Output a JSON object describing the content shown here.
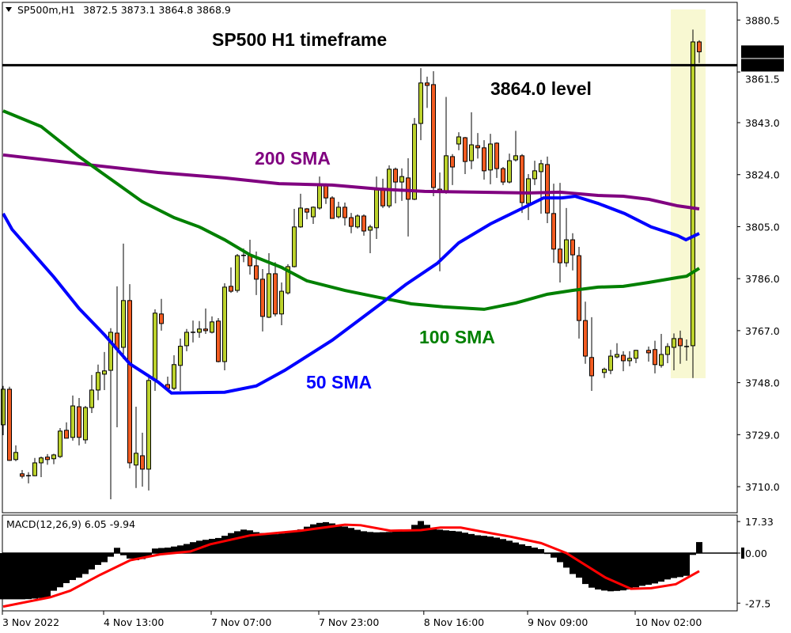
{
  "header": {
    "symbol": "SP500m,H1",
    "ohlc": "3872.5 3873.1 3864.8 3868.9"
  },
  "annotations": {
    "title": "SP500 H1 timeframe",
    "level_label": "3864.0 level",
    "sma200_label": "200 SMA",
    "sma100_label": "100 SMA",
    "sma50_label": "50 SMA"
  },
  "colors": {
    "bull": "#bcd22c",
    "bear": "#f25c22",
    "sma50": "#0000ff",
    "sma100": "#008000",
    "sma200": "#800080",
    "highlight": "#f8f8d2",
    "signal": "#ff0000",
    "histogram": "#000000"
  },
  "chart_data": {
    "type": "candlestick",
    "price_axis": {
      "ticks": [
        "3880.5",
        "3861.5",
        "3843.0",
        "3824.0",
        "3805.0",
        "3786.0",
        "3767.0",
        "3748.0",
        "3729.0",
        "3710.0"
      ],
      "current_price": "3868.9",
      "level": "3864.0"
    },
    "time_axis": [
      {
        "bar": 0,
        "label": "3 Nov 2022"
      },
      {
        "bar": 16,
        "label": "4 Nov 13:00"
      },
      {
        "bar": 33,
        "label": "7 Nov 07:00"
      },
      {
        "bar": 50,
        "label": "7 Nov 23:00"
      },
      {
        "bar": 66.6,
        "label": "8 Nov 16:00"
      },
      {
        "bar": 83,
        "label": "9 Nov 09:00"
      },
      {
        "bar": 100,
        "label": "10 Nov 02:00"
      }
    ],
    "highlight_bars": [
      106,
      110
    ],
    "candles_ohlc": [
      [
        3732.6,
        3746.8,
        3728.8,
        3745.6
      ],
      [
        3745.6,
        3746.5,
        3719.4,
        3719.6
      ],
      [
        3719.9,
        3725.1,
        3719.3,
        3722.5
      ],
      [
        3714.7,
        3716.1,
        3713.0,
        3713.8
      ],
      [
        3714.0,
        3715.3,
        3711.2,
        3714.0
      ],
      [
        3714.0,
        3720.5,
        3713.8,
        3718.7
      ],
      [
        3718.7,
        3721.0,
        3713.5,
        3720.5
      ],
      [
        3720.8,
        3721.9,
        3718.0,
        3719.9
      ],
      [
        3720.2,
        3722.0,
        3718.2,
        3721.6
      ],
      [
        3721.0,
        3731.4,
        3720.5,
        3730.3
      ],
      [
        3730.6,
        3733.5,
        3727.7,
        3727.7
      ],
      [
        3728.0,
        3743.3,
        3726.8,
        3739.5
      ],
      [
        3739.2,
        3742.4,
        3725.1,
        3728.0
      ],
      [
        3727.1,
        3739.5,
        3725.7,
        3738.9
      ],
      [
        3738.9,
        3750.8,
        3736.9,
        3745.3
      ],
      [
        3745.3,
        3754.6,
        3741.6,
        3751.7
      ],
      [
        3751.1,
        3759.2,
        3745.3,
        3752.3
      ],
      [
        3752.5,
        3767.9,
        3705.4,
        3766.4
      ],
      [
        3766.1,
        3783.2,
        3731.7,
        3760.3
      ],
      [
        3760.9,
        3798.8,
        3756.6,
        3778.0
      ],
      [
        3778.0,
        3784.0,
        3716.7,
        3718.7
      ],
      [
        3717.9,
        3739.2,
        3709.5,
        3722.2
      ],
      [
        3721.3,
        3729.7,
        3710.0,
        3716.4
      ],
      [
        3716.4,
        3751.1,
        3708.6,
        3748.8
      ],
      [
        3748.8,
        3774.8,
        3745.0,
        3773.4
      ],
      [
        3773.1,
        3778.6,
        3767.0,
        3769.6
      ],
      [
        3747.3,
        3750.2,
        3745.6,
        3745.9
      ],
      [
        3745.9,
        3758.0,
        3745.3,
        3754.6
      ],
      [
        3754.3,
        3764.1,
        3745.0,
        3761.3
      ],
      [
        3761.5,
        3767.6,
        3759.5,
        3766.4
      ],
      [
        3766.4,
        3770.7,
        3762.7,
        3766.4
      ],
      [
        3766.4,
        3770.5,
        3764.4,
        3767.6
      ],
      [
        3767.6,
        3775.1,
        3765.8,
        3767.0
      ],
      [
        3766.4,
        3772.2,
        3766.0,
        3770.2
      ],
      [
        3770.5,
        3771.6,
        3755.4,
        3755.7
      ],
      [
        3755.7,
        3784.3,
        3752.5,
        3782.9
      ],
      [
        3783.2,
        3790.1,
        3780.8,
        3781.4
      ],
      [
        3781.7,
        3795.0,
        3780.9,
        3794.4
      ],
      [
        3794.4,
        3797.0,
        3792.0,
        3794.5
      ],
      [
        3794.7,
        3800.2,
        3787.5,
        3790.7
      ],
      [
        3790.7,
        3795.9,
        3780.0,
        3785.8
      ],
      [
        3785.8,
        3789.5,
        3766.7,
        3772.2
      ],
      [
        3771.9,
        3795.3,
        3771.6,
        3787.8
      ],
      [
        3787.8,
        3792.0,
        3772.2,
        3773.1
      ],
      [
        3773.1,
        3784.6,
        3769.0,
        3781.4
      ],
      [
        3780.8,
        3791.3,
        3780.2,
        3790.4
      ],
      [
        3790.4,
        3811.5,
        3790.1,
        3804.9
      ],
      [
        3804.9,
        3817.0,
        3804.6,
        3811.8
      ],
      [
        3811.5,
        3811.8,
        3807.7,
        3810.3
      ],
      [
        3808.6,
        3812.4,
        3806.0,
        3812.1
      ],
      [
        3811.8,
        3823.3,
        3811.2,
        3820.5
      ],
      [
        3820.5,
        3820.8,
        3813.3,
        3815.5
      ],
      [
        3815.5,
        3816.1,
        3808.0,
        3808.0
      ],
      [
        3808.6,
        3814.1,
        3808.0,
        3812.1
      ],
      [
        3812.1,
        3813.8,
        3805.4,
        3808.3
      ],
      [
        3808.3,
        3810.0,
        3802.6,
        3805.1
      ],
      [
        3804.9,
        3809.5,
        3804.3,
        3808.9
      ],
      [
        3808.9,
        3809.5,
        3801.7,
        3803.4
      ],
      [
        3803.7,
        3805.7,
        3795.3,
        3804.9
      ],
      [
        3804.6,
        3823.3,
        3800.5,
        3818.4
      ],
      [
        3818.7,
        3822.5,
        3811.8,
        3812.6
      ],
      [
        3812.6,
        3827.4,
        3811.8,
        3826.0
      ],
      [
        3826.0,
        3826.6,
        3813.5,
        3821.3
      ],
      [
        3821.3,
        3826.3,
        3814.4,
        3823.3
      ],
      [
        3822.8,
        3830.0,
        3801.4,
        3815.0
      ],
      [
        3815.0,
        3844.7,
        3814.7,
        3842.4
      ],
      [
        3842.7,
        3862.9,
        3836.6,
        3857.5
      ],
      [
        3857.5,
        3859.8,
        3848.4,
        3856.6
      ],
      [
        3856.9,
        3861.8,
        3816.1,
        3819.3
      ],
      [
        3818.7,
        3824.8,
        3788.7,
        3817.8
      ],
      [
        3817.8,
        3852.4,
        3817.0,
        3830.9
      ],
      [
        3830.6,
        3831.5,
        3820.2,
        3826.8
      ],
      [
        3835.2,
        3839.5,
        3832.9,
        3837.8
      ],
      [
        3837.5,
        3837.8,
        3824.2,
        3828.8
      ],
      [
        3829.1,
        3846.8,
        3826.0,
        3834.9
      ],
      [
        3834.6,
        3839.2,
        3829.9,
        3833.8
      ],
      [
        3833.8,
        3836.6,
        3822.2,
        3825.4
      ],
      [
        3825.7,
        3838.9,
        3820.5,
        3835.2
      ],
      [
        3835.5,
        3835.8,
        3822.8,
        3826.2
      ],
      [
        3826.2,
        3826.8,
        3820.2,
        3821.3
      ],
      [
        3821.3,
        3831.7,
        3820.8,
        3829.1
      ],
      [
        3829.4,
        3840.0,
        3828.8,
        3830.9
      ],
      [
        3830.9,
        3831.5,
        3810.0,
        3813.8
      ],
      [
        3813.5,
        3824.2,
        3807.4,
        3822.5
      ],
      [
        3822.5,
        3829.1,
        3820.2,
        3825.4
      ],
      [
        3825.1,
        3829.4,
        3809.7,
        3828.0
      ],
      [
        3827.7,
        3830.6,
        3806.3,
        3810.0
      ],
      [
        3809.8,
        3820.7,
        3791.8,
        3796.8
      ],
      [
        3796.8,
        3821.0,
        3784.6,
        3791.8
      ],
      [
        3791.8,
        3811.8,
        3790.3,
        3800.2
      ],
      [
        3800.2,
        3802.6,
        3789.0,
        3794.7
      ],
      [
        3794.4,
        3797.6,
        3764.1,
        3770.7
      ],
      [
        3770.7,
        3777.6,
        3754.9,
        3757.7
      ],
      [
        3757.2,
        3771.9,
        3745.0,
        3750.5
      ],
      null,
      [
        3751.7,
        3753.5,
        3749.7,
        3752.9
      ],
      [
        3752.5,
        3760.0,
        3751.1,
        3757.7
      ],
      [
        3757.4,
        3762.4,
        3756.9,
        3758.3
      ],
      [
        3758.0,
        3759.5,
        3752.2,
        3756.0
      ],
      [
        3756.0,
        3759.5,
        3754.0,
        3756.9
      ],
      [
        3756.9,
        3760.0,
        3755.1,
        3759.8
      ],
      null,
      [
        3759.8,
        3761.2,
        3755.7,
        3758.9
      ],
      [
        3760.1,
        3763.3,
        3751.4,
        3754.6
      ],
      [
        3754.3,
        3765.8,
        3753.5,
        3758.3
      ],
      [
        3758.3,
        3762.4,
        3755.1,
        3761.2
      ],
      [
        3760.9,
        3766.0,
        3752.5,
        3764.1
      ],
      [
        3764.1,
        3767.0,
        3754.9,
        3761.5
      ],
      [
        3761.2,
        3763.8,
        3756.0,
        3761.2
      ],
      [
        3761.5,
        3877.0,
        3749.7,
        3872.5
      ],
      [
        3872.5,
        3873.1,
        3864.8,
        3868.9
      ]
    ],
    "sma50": [
      [
        0,
        3809.8
      ],
      [
        1.4,
        3804
      ],
      [
        3.6,
        3798.2
      ],
      [
        8,
        3786.6
      ],
      [
        12,
        3775.1
      ],
      [
        16,
        3765.5
      ],
      [
        20,
        3754.9
      ],
      [
        24.5,
        3748.2
      ],
      [
        26.6,
        3744.2
      ],
      [
        35,
        3744.5
      ],
      [
        40,
        3746.8
      ],
      [
        44.5,
        3752.5
      ],
      [
        52,
        3763.5
      ],
      [
        59.5,
        3776.5
      ],
      [
        63.6,
        3783.8
      ],
      [
        68.6,
        3791.6
      ],
      [
        72,
        3799.1
      ],
      [
        77,
        3806
      ],
      [
        81.6,
        3811.2
      ],
      [
        85.4,
        3815.5
      ],
      [
        88.3,
        3815.5
      ],
      [
        90.4,
        3816.1
      ],
      [
        94,
        3813.5
      ],
      [
        98.2,
        3809.8
      ],
      [
        102.4,
        3804.9
      ],
      [
        106.6,
        3801.7
      ],
      [
        107.9,
        3800.2
      ],
      [
        110,
        3802.5
      ]
    ],
    "sma100": [
      [
        0,
        3847.3
      ],
      [
        6,
        3841.6
      ],
      [
        12,
        3830.6
      ],
      [
        18,
        3820.7
      ],
      [
        22,
        3814.1
      ],
      [
        27,
        3808.3
      ],
      [
        31,
        3804.9
      ],
      [
        35,
        3800.2
      ],
      [
        39,
        3794.7
      ],
      [
        44,
        3790.1
      ],
      [
        48,
        3785.2
      ],
      [
        54,
        3781.7
      ],
      [
        59.5,
        3779.1
      ],
      [
        64.5,
        3776.8
      ],
      [
        69.5,
        3775.7
      ],
      [
        76,
        3774.8
      ],
      [
        81,
        3777.1
      ],
      [
        86,
        3780.3
      ],
      [
        90,
        3781.7
      ],
      [
        94,
        3782.9
      ],
      [
        98,
        3783.2
      ],
      [
        102,
        3784.6
      ],
      [
        106.6,
        3786.4
      ],
      [
        108,
        3786.9
      ],
      [
        110,
        3789.8
      ]
    ],
    "sma200": [
      [
        0,
        3831.2
      ],
      [
        12,
        3828
      ],
      [
        24.5,
        3824.8
      ],
      [
        35,
        3822.8
      ],
      [
        43.6,
        3820.7
      ],
      [
        52,
        3820.2
      ],
      [
        59.5,
        3818.7
      ],
      [
        66.6,
        3817.9
      ],
      [
        75,
        3817.6
      ],
      [
        83,
        3817.3
      ],
      [
        88,
        3817.6
      ],
      [
        94,
        3816.4
      ],
      [
        98,
        3816.1
      ],
      [
        102,
        3815
      ],
      [
        106.6,
        3812.6
      ],
      [
        110,
        3811.5
      ]
    ]
  },
  "macd": {
    "label": "MACD(12,26,9) 6.05 -9.94",
    "ticks": [
      "17.33",
      "0.00",
      "-27.5"
    ],
    "histogram": [
      -25.4,
      -25.4,
      -25.4,
      -25.4,
      -25.3,
      -25,
      -24.7,
      -24.3,
      -20.7,
      -18.8,
      -16.5,
      -14.8,
      -13.5,
      -11.5,
      -9,
      -6.5,
      -5,
      -2,
      2.9,
      -1.2,
      -3,
      -3.9,
      -3.3,
      -2,
      2.5,
      2.8,
      3,
      3.6,
      4.2,
      5,
      6,
      6.8,
      7.3,
      7.8,
      8.3,
      9.5,
      11,
      12,
      12.9,
      12.5,
      11.5,
      11,
      10.7,
      10.4,
      10.8,
      11.4,
      11.9,
      13,
      14.5,
      15.8,
      16.6,
      17,
      16.3,
      15.5,
      14.6,
      13.8,
      12.8,
      12,
      11.6,
      11.4,
      11.5,
      11.6,
      11.8,
      12.2,
      13,
      15.5,
      17.6,
      15.5,
      13.9,
      12.9,
      12.5,
      12.2,
      11.9,
      11.2,
      10.5,
      9.8,
      9.5,
      9.1,
      8.5,
      7.7,
      6.8,
      5.8,
      4.8,
      3.9,
      3,
      2.2,
      -0.5,
      -2.5,
      -5,
      -8,
      -11.5,
      -13.5,
      -17,
      -19,
      -20,
      -20.6,
      -21,
      -20.8,
      -20.5,
      -20,
      -18.8,
      -18,
      -17.4,
      -16.7,
      -15.7,
      -14.5,
      -13.7,
      -13.2,
      -12.5,
      -1,
      6.05
    ],
    "signal": [
      [
        0,
        -29.4
      ],
      [
        7.4,
        -24.3
      ],
      [
        10.6,
        -20.7
      ],
      [
        15.3,
        -12
      ],
      [
        20.1,
        -3.9
      ],
      [
        24.8,
        -0.7
      ],
      [
        29.6,
        0.9
      ],
      [
        32.7,
        4.8
      ],
      [
        39,
        9.7
      ],
      [
        47,
        12.3
      ],
      [
        54,
        15.6
      ],
      [
        56.5,
        15.3
      ],
      [
        61.2,
        12.3
      ],
      [
        66,
        12.6
      ],
      [
        69.1,
        14
      ],
      [
        72.3,
        14
      ],
      [
        75.5,
        11.9
      ],
      [
        80.2,
        9
      ],
      [
        85,
        5.5
      ],
      [
        89,
        0
      ],
      [
        95.2,
        -13.5
      ],
      [
        99.2,
        -19.6
      ],
      [
        102.4,
        -19.3
      ],
      [
        106.3,
        -17.1
      ],
      [
        110,
        -9.94
      ]
    ]
  }
}
